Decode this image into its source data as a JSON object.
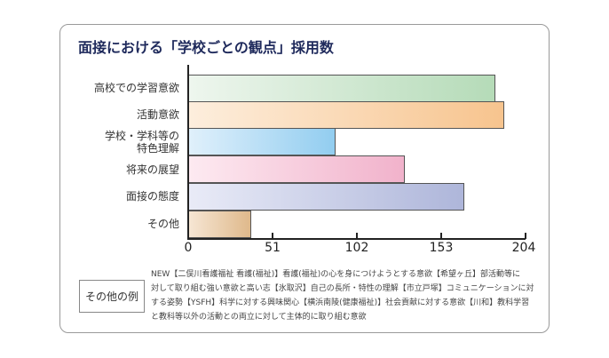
{
  "title": "面接における「学校ごとの観点」採用数",
  "chart_data": {
    "type": "bar",
    "orientation": "horizontal",
    "title": "面接における「学校ごとの観点」採用数",
    "categories": [
      "高校での学習意欲",
      "活動意欲",
      "学校・学科等の特色理解",
      "将来の展望",
      "面接の態度",
      "その他"
    ],
    "values": [
      186,
      191,
      89,
      131,
      167,
      38
    ],
    "xlabel": "",
    "ylabel": "",
    "xlim": [
      0,
      204
    ],
    "xticks": [
      0,
      51,
      102,
      153,
      204
    ],
    "grid": false,
    "colors": [
      {
        "from": "#eef6ee",
        "to": "#b5dbb8"
      },
      {
        "from": "#fdeedd",
        "to": "#f7c48e"
      },
      {
        "from": "#e0f0fb",
        "to": "#92cdf0"
      },
      {
        "from": "#fdeaf1",
        "to": "#f1b2cb"
      },
      {
        "from": "#e9ebf7",
        "to": "#aeb6da"
      },
      {
        "from": "#f6e6d4",
        "to": "#dfb98b"
      }
    ]
  },
  "labels": {
    "cat0": "高校での学習意欲",
    "cat1": "活動意欲",
    "cat2_line1": "学校・学科等の",
    "cat2_line2": "特色理解",
    "cat3": "将来の展望",
    "cat4": "面接の態度",
    "cat5": "その他"
  },
  "ticks": [
    "0",
    "51",
    "102",
    "153",
    "204"
  ],
  "legend": {
    "label": "その他の例",
    "lines": [
      "NEW【二俣川看護福祉 看護(福祉)】看護(福祉)の心を身につけようとする意欲【希望ヶ丘】部活動等に",
      "対して取り組む強い意欲と高い志【氷取沢】自己の長所・特性の理解【市立戸塚】コミュニケーションに対",
      "する姿勢【YSFH】科学に対する興味関心【横浜南陵(健康福祉)】社会貢献に対する意欲【川和】教科学習",
      "と教科等以外の活動との両立に対して主体的に取り組む意欲"
    ]
  }
}
